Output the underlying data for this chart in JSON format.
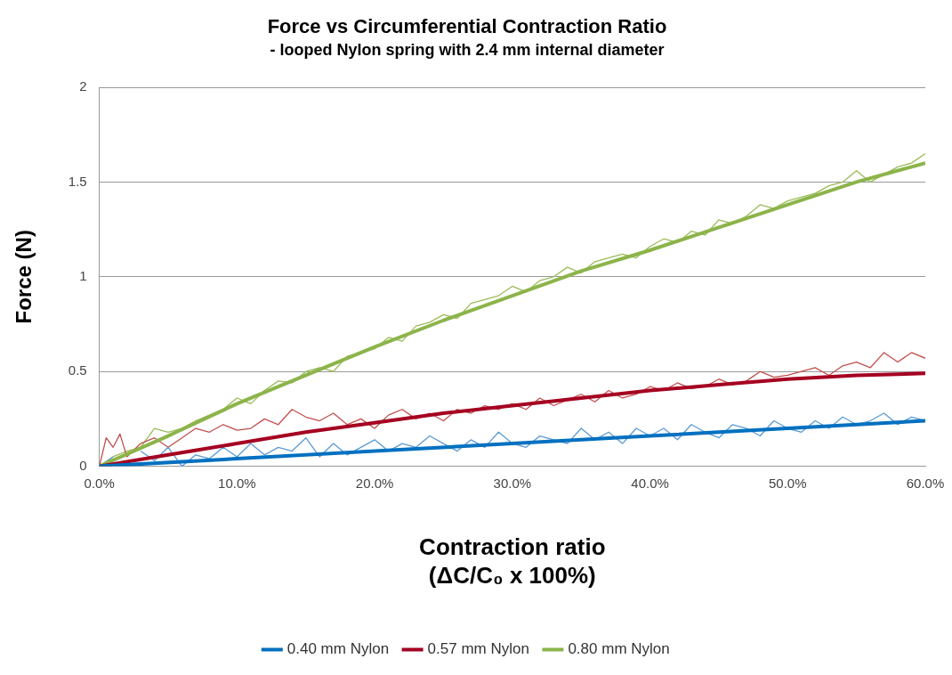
{
  "chart_data": {
    "type": "line",
    "title": "Force vs Circumferential Contraction Ratio",
    "subtitle": "- looped Nylon spring with 2.4 mm internal diameter",
    "xlabel": "Contraction ratio\n(ΔC/C₀ x 100%)",
    "ylabel": "Force (N)",
    "xlim": [
      0,
      60
    ],
    "xticks": [
      {
        "value": 0,
        "label": "0.0%"
      },
      {
        "value": 10,
        "label": "10.0%"
      },
      {
        "value": 20,
        "label": "20.0%"
      },
      {
        "value": 30,
        "label": "30.0%"
      },
      {
        "value": 40,
        "label": "40.0%"
      },
      {
        "value": 50,
        "label": "50.0%"
      },
      {
        "value": 60,
        "label": "60.0%"
      }
    ],
    "ylim": [
      0,
      2
    ],
    "yticks": [
      0,
      0.5,
      1,
      1.5,
      2
    ],
    "grid": "y",
    "legend": "bottom",
    "marker": "none",
    "line_style": "solid",
    "series": [
      {
        "color": "#5b9bd5",
        "x": [
          0,
          1,
          2,
          3,
          4,
          5,
          6,
          7,
          8,
          9,
          10,
          11,
          12,
          13,
          14,
          15,
          16,
          17,
          18,
          19,
          20,
          21,
          22,
          23,
          24,
          25,
          26,
          27,
          28,
          29,
          30,
          31,
          32,
          33,
          34,
          35,
          36,
          37,
          38,
          39,
          40,
          41,
          42,
          43,
          44,
          45,
          46,
          47,
          48,
          49,
          50,
          51,
          52,
          53,
          54,
          55,
          56,
          57,
          58,
          59,
          60
        ],
        "values": [
          0,
          0.05,
          null,
          0.08,
          0.03,
          0.1,
          0,
          0.06,
          0.04,
          0.1,
          0.05,
          0.12,
          0.06,
          0.1,
          0.08,
          0.15,
          0.05,
          0.12,
          0.06,
          0.1,
          0.14,
          0.08,
          0.12,
          0.1,
          0.16,
          0.12,
          0.08,
          0.14,
          0.1,
          0.18,
          0.12,
          0.1,
          0.16,
          0.14,
          0.12,
          0.2,
          0.14,
          0.18,
          0.12,
          0.2,
          0.16,
          0.2,
          0.14,
          0.22,
          0.18,
          0.15,
          0.22,
          0.2,
          0.16,
          0.24,
          0.2,
          0.18,
          0.24,
          0.2,
          0.26,
          0.22,
          0.24,
          0.28,
          0.22,
          0.26,
          0.24
        ]
      },
      {
        "color": "#c0504d",
        "x": [
          0,
          0.5,
          1,
          1.5,
          2,
          3,
          4,
          5,
          6,
          7,
          8,
          9,
          10,
          11,
          12,
          13,
          14,
          15,
          16,
          17,
          18,
          19,
          20,
          21,
          22,
          23,
          24,
          25,
          26,
          27,
          28,
          29,
          30,
          31,
          32,
          33,
          34,
          35,
          36,
          37,
          38,
          39,
          40,
          41,
          42,
          43,
          44,
          45,
          46,
          47,
          48,
          49,
          50,
          51,
          52,
          53,
          54,
          55,
          56,
          57,
          58,
          59,
          60
        ],
        "values": [
          0,
          0.15,
          0.1,
          0.17,
          0.05,
          0.12,
          0.15,
          0.1,
          0.15,
          0.2,
          0.18,
          0.22,
          0.19,
          0.2,
          0.25,
          0.22,
          0.3,
          0.26,
          0.24,
          0.28,
          0.22,
          0.25,
          0.2,
          0.27,
          0.3,
          0.25,
          0.28,
          0.24,
          0.3,
          0.28,
          0.32,
          0.3,
          0.33,
          0.3,
          0.36,
          0.32,
          0.35,
          0.38,
          0.34,
          0.4,
          0.36,
          0.38,
          0.42,
          0.4,
          0.44,
          0.41,
          0.42,
          0.46,
          0.43,
          0.45,
          0.5,
          0.47,
          0.48,
          0.5,
          0.52,
          0.48,
          0.53,
          0.55,
          0.52,
          0.6,
          0.55,
          0.6,
          0.57
        ]
      },
      {
        "color": "#9bbb59",
        "x": [
          0,
          1,
          2,
          3,
          4,
          5,
          6,
          7,
          8,
          9,
          10,
          11,
          12,
          13,
          14,
          15,
          16,
          17,
          18,
          19,
          20,
          21,
          22,
          23,
          24,
          25,
          26,
          27,
          28,
          29,
          30,
          31,
          32,
          33,
          34,
          35,
          36,
          37,
          38,
          39,
          40,
          41,
          42,
          43,
          44,
          45,
          46,
          47,
          48,
          49,
          50,
          51,
          52,
          53,
          54,
          55,
          56,
          57,
          58,
          59,
          60
        ],
        "values": [
          0,
          0.05,
          0.08,
          0.1,
          0.2,
          0.18,
          0.2,
          0.24,
          0.27,
          0.3,
          0.36,
          0.33,
          0.4,
          0.45,
          0.44,
          0.5,
          0.52,
          0.5,
          0.58,
          0.6,
          0.62,
          0.68,
          0.66,
          0.74,
          0.76,
          0.8,
          0.78,
          0.86,
          0.88,
          0.9,
          0.95,
          0.92,
          0.98,
          1,
          1.05,
          1.02,
          1.08,
          1.1,
          1.12,
          1.1,
          1.16,
          1.2,
          1.18,
          1.24,
          1.22,
          1.3,
          1.28,
          1.32,
          1.38,
          1.36,
          1.4,
          1.42,
          1.44,
          1.48,
          1.5,
          1.56,
          1.5,
          1.54,
          1.58,
          1.6,
          1.65
        ]
      },
      {
        "name": "0.40 mm Nylon",
        "color": "#0070c0",
        "x": [
          0,
          10,
          20,
          30,
          40,
          50,
          60
        ],
        "values": [
          0,
          0.04,
          0.08,
          0.12,
          0.16,
          0.2,
          0.24
        ]
      },
      {
        "name": "0.57 mm Nylon",
        "color": "#a50021",
        "x": [
          0,
          5,
          10,
          15,
          20,
          25,
          30,
          35,
          40,
          45,
          50,
          55,
          60
        ],
        "values": [
          0,
          0.06,
          0.12,
          0.18,
          0.23,
          0.28,
          0.32,
          0.36,
          0.4,
          0.43,
          0.46,
          0.48,
          0.49
        ]
      },
      {
        "name": "0.80 mm Nylon",
        "color": "#8cb44a",
        "x": [
          0,
          5,
          10,
          15,
          20,
          25,
          30,
          35,
          40,
          45,
          50,
          55,
          60
        ],
        "values": [
          0,
          0.16,
          0.33,
          0.48,
          0.63,
          0.77,
          0.9,
          1.03,
          1.14,
          1.26,
          1.38,
          1.5,
          1.6
        ]
      }
    ]
  }
}
